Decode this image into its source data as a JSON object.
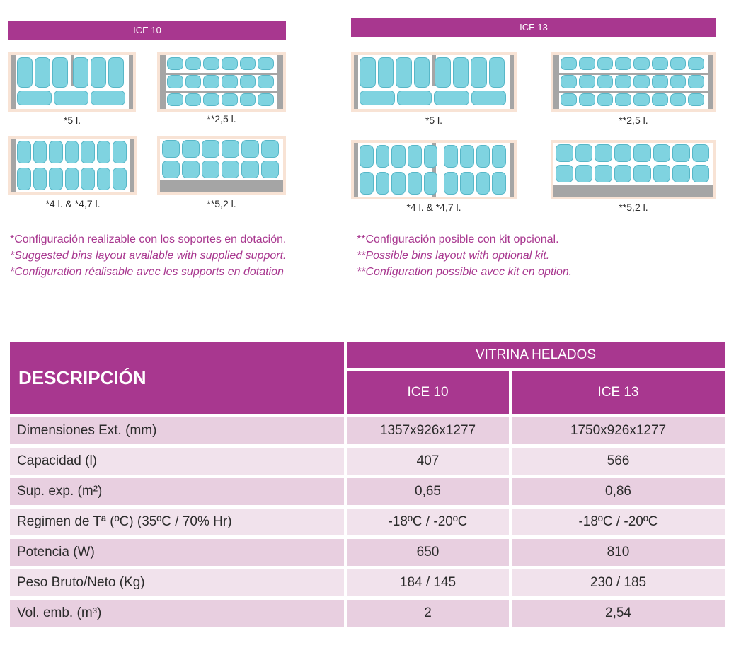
{
  "ice10": {
    "title": "ICE 10",
    "captions": [
      "*5 l.",
      "**2,5 l.",
      "*4 l. & *4,7 l.",
      "**5,2 l."
    ]
  },
  "ice13": {
    "title": "ICE 13",
    "captions": [
      "*5 l.",
      "**2,5 l.",
      "*4 l. & *4,7 l.",
      "**5,2 l."
    ]
  },
  "notes_left": [
    "*Configuración realizable con los soportes en dotación.",
    "*Suggested bins layout available with supplied support.",
    "*Configuration réalisable avec les supports en dotation"
  ],
  "notes_right": [
    "**Configuración posible con kit opcional.",
    "**Possible bins layout with optional kit.",
    "**Configuration possible avec kit en option."
  ],
  "table": {
    "description_header": "DESCRIPCIÓN",
    "group_header": "VITRINA HELADOS",
    "columns": [
      "ICE 10",
      "ICE 13"
    ],
    "rows": [
      {
        "label": "Dimensiones Ext. (mm)",
        "values": [
          "1357x926x1277",
          "1750x926x1277"
        ]
      },
      {
        "label": "Capacidad (l)",
        "values": [
          "407",
          "566"
        ]
      },
      {
        "label": "Sup. exp. (m²)",
        "values": [
          "0,65",
          "0,86"
        ]
      },
      {
        "label": "Regimen de Tª (ºC) (35ºC / 70% Hr)",
        "values": [
          "-18ºC / -20ºC",
          "-18ºC / -20ºC"
        ]
      },
      {
        "label": "Potencia (W)",
        "values": [
          "650",
          "810"
        ]
      },
      {
        "label": "Peso Bruto/Neto (Kg)",
        "values": [
          "184 / 145",
          "230 / 185"
        ]
      },
      {
        "label": "Vol. emb. (m³)",
        "values": [
          "2",
          "2,54"
        ]
      }
    ]
  },
  "colors": {
    "accent": "#a8378f",
    "row_dark": "#e8cfe0",
    "row_light": "#f1e2ec",
    "bin": "#7fd3e0",
    "tray_border": "#f8e3d5",
    "rod": "#a5a5a5"
  }
}
